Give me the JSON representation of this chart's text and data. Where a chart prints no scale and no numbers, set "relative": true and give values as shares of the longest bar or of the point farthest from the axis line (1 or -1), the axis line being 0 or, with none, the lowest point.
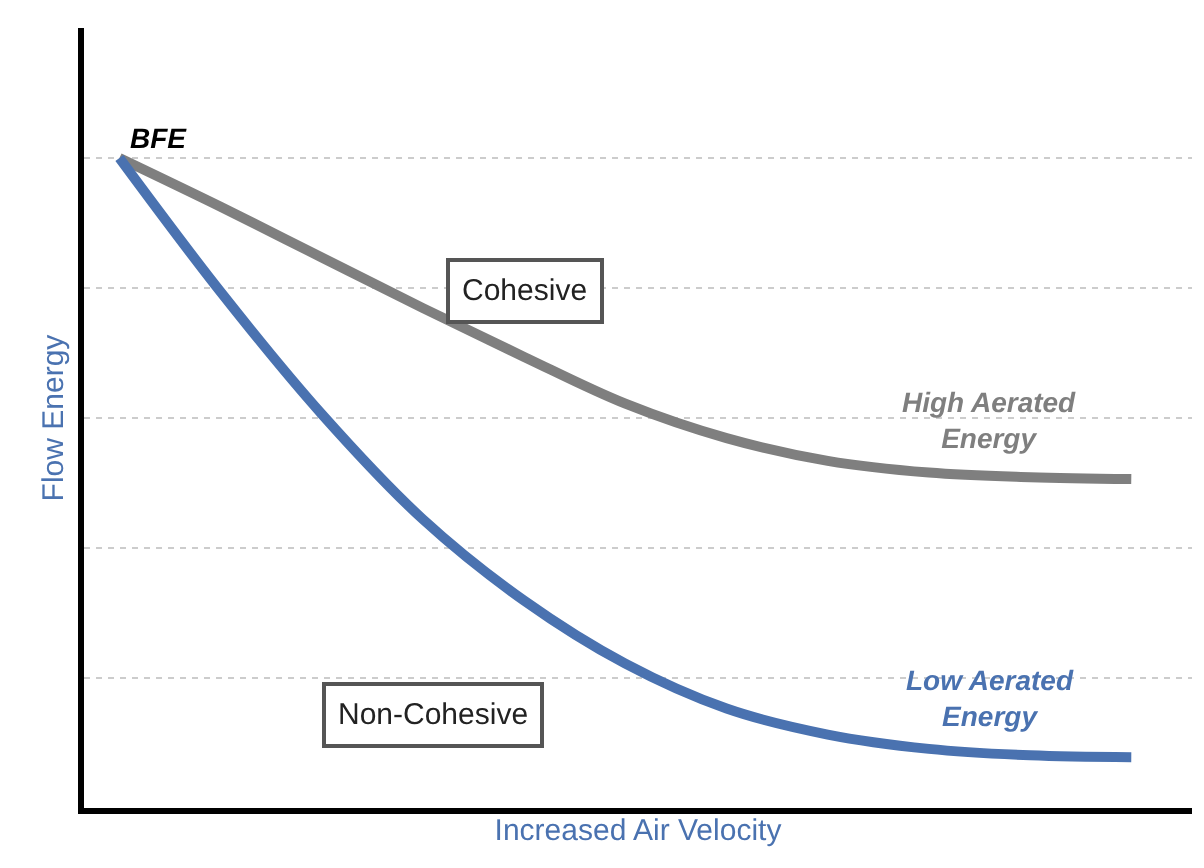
{
  "chart_data": {
    "type": "line",
    "relative": true,
    "xlabel": "Increased Air Velocity",
    "ylabel": "Flow Energy",
    "grid": "y",
    "legend": false,
    "marker": "none",
    "line_style": "solid",
    "categories": [
      null,
      null,
      null,
      null,
      null,
      null,
      null,
      null,
      null,
      null,
      null
    ],
    "series": [
      {
        "name": "Cohesive",
        "color": "#7f7f7f",
        "values": [
          1,
          0.925,
          0.847,
          0.769,
          0.694,
          0.622,
          0.569,
          0.534,
          0.516,
          0.509,
          0.506
        ]
      },
      {
        "name": "Non-Cohesive",
        "color": "#4a72b0",
        "values": [
          1,
          0.794,
          0.606,
          0.444,
          0.319,
          0.222,
          0.153,
          0.113,
          0.091,
          0.081,
          0.078
        ]
      }
    ],
    "annotations": [
      "BFE",
      "High Aerated Energy",
      "Low Aerated Energy"
    ]
  }
}
